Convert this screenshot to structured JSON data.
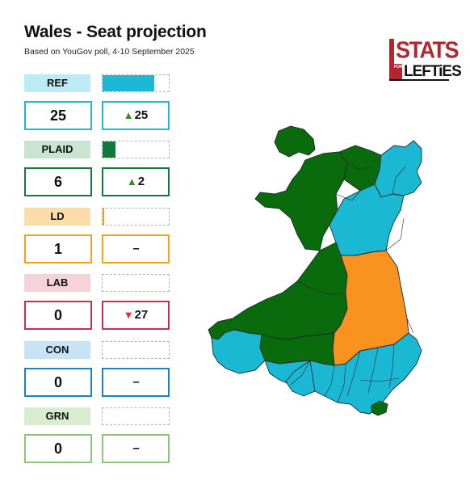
{
  "title": "Wales - Seat projection",
  "subtitle": "Based on YouGov poll, 4-10 September 2025",
  "logo": {
    "line1": "STATS",
    "for": "FOR",
    "line2": "LEFTiES"
  },
  "parties": [
    {
      "name": "REF",
      "seats": "25",
      "change": "25",
      "direction": "up",
      "seat_share": 0.78,
      "color": "#1cb8d4",
      "label_bg": "#bdebf3"
    },
    {
      "name": "PLAID",
      "seats": "6",
      "change": "2",
      "direction": "up",
      "seat_share": 0.19,
      "color": "#0e7a3e",
      "label_bg": "#c9e4d2"
    },
    {
      "name": "LD",
      "seats": "1",
      "change": "–",
      "direction": "none",
      "seat_share": 0.03,
      "color": "#f7a21a",
      "label_bg": "#fbdcaa"
    },
    {
      "name": "LAB",
      "seats": "0",
      "change": "27",
      "direction": "down",
      "seat_share": 0,
      "color": "#c8304a",
      "label_bg": "#f6d3d9"
    },
    {
      "name": "CON",
      "seats": "0",
      "change": "–",
      "direction": "none",
      "seat_share": 0,
      "color": "#1f7ec8",
      "label_bg": "#c8e3f5"
    },
    {
      "name": "GRN",
      "seats": "0",
      "change": "–",
      "direction": "none",
      "seat_share": 0,
      "color": "#8dc37a",
      "label_bg": "#d8ecd0"
    }
  ],
  "map_colors": {
    "plaid": "#0a6b0c",
    "reform": "#1bb8d3",
    "libdem": "#f7931e",
    "change_up": "#3b8a1e",
    "change_down": "#d9303f"
  }
}
